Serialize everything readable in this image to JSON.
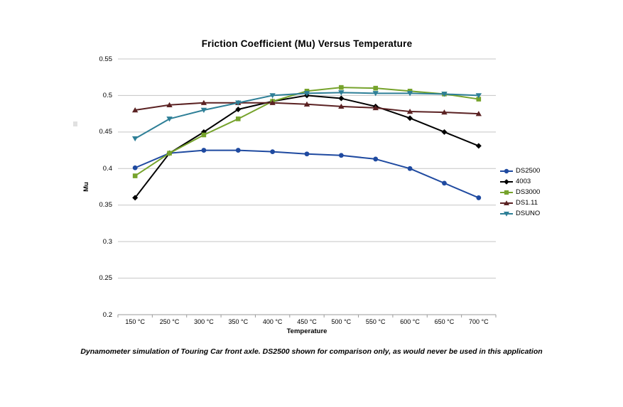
{
  "chart_data": {
    "type": "line",
    "title": "Friction Coefficient (Mu) Versus Temperature",
    "xlabel": "Temperature",
    "ylabel": "Mu",
    "categories": [
      "150 °C",
      "250 °C",
      "300 °C",
      "350 °C",
      "400 °C",
      "450 °C",
      "500 °C",
      "550 °C",
      "600 °C",
      "650 °C",
      "700 °C"
    ],
    "ylim": [
      0.2,
      0.55
    ],
    "yticks": [
      0.55,
      0.5,
      0.45,
      0.4,
      0.35,
      0.3,
      0.25,
      0.2
    ],
    "ytick_labels": [
      "0.55",
      "0.5",
      "0.45",
      "0.4",
      "0.35",
      "0.3",
      "0.25",
      "0.2"
    ],
    "grid": true,
    "legend_position": "right",
    "series": [
      {
        "name": "DS2500",
        "color": "#1F4AA0",
        "marker": "circle",
        "values": [
          0.401,
          0.421,
          0.425,
          0.425,
          0.423,
          0.42,
          0.418,
          0.413,
          0.4,
          0.38,
          0.36
        ]
      },
      {
        "name": "4003",
        "color": "#000000",
        "marker": "diamond",
        "values": [
          0.36,
          0.421,
          0.45,
          0.481,
          0.492,
          0.5,
          0.496,
          0.485,
          0.469,
          0.45,
          0.431
        ]
      },
      {
        "name": "DS3000",
        "color": "#76A32C",
        "marker": "square",
        "values": [
          0.39,
          0.421,
          0.446,
          0.468,
          0.492,
          0.506,
          0.511,
          0.51,
          0.506,
          0.502,
          0.495
        ]
      },
      {
        "name": "DS1.11",
        "color": "#5B2223",
        "marker": "triangle-up",
        "values": [
          0.48,
          0.487,
          0.49,
          0.49,
          0.49,
          0.488,
          0.485,
          0.483,
          0.478,
          0.477,
          0.475
        ]
      },
      {
        "name": "DSUNO",
        "color": "#2E7F97",
        "marker": "triangle-down",
        "values": [
          0.441,
          0.468,
          0.48,
          0.49,
          0.5,
          0.503,
          0.504,
          0.503,
          0.503,
          0.502,
          0.5
        ]
      }
    ]
  },
  "caption": "Dynamometer simulation of Touring Car front axle. DS2500 shown for comparison only, as would never be used in this application",
  "styles": {
    "grid_color": "#C5C5C5",
    "axis_color": "#9B9B9B",
    "background": "#FFFFFF"
  }
}
